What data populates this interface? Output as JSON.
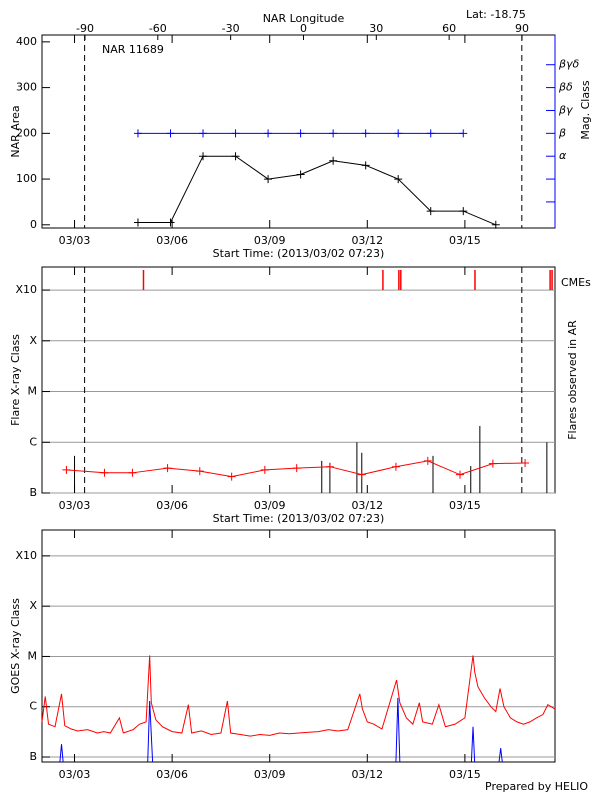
{
  "chart_data": [
    {
      "type": "line",
      "title": "NAR 11689",
      "annotation": "Lat: -18.75",
      "x_label": "Start Time: (2013/03/02 07:23)",
      "y_label": "NAR Area",
      "y2_label": "Mag. Class",
      "x2_label": "NAR Longitude",
      "xlim": [
        2,
        17.77
      ],
      "xticks": [
        {
          "value": 3,
          "label": "03/03"
        },
        {
          "value": 6,
          "label": "03/06"
        },
        {
          "value": 9,
          "label": "03/09"
        },
        {
          "value": 12,
          "label": "03/12"
        },
        {
          "value": 15,
          "label": "03/15"
        }
      ],
      "ylim": [
        -7,
        415
      ],
      "yticks": [
        0,
        100,
        200,
        300,
        400
      ],
      "x2lim": [
        -107.7,
        103.6
      ],
      "x2ticks": [
        -90,
        -60,
        -30,
        0,
        30,
        60,
        90
      ],
      "y2lim": [
        -7,
        415
      ],
      "y2ticks": [
        {
          "value": 150,
          "label": "α"
        },
        {
          "value": 200,
          "label": "β"
        },
        {
          "value": 250,
          "label": "βγ"
        },
        {
          "value": 300,
          "label": "βδ"
        },
        {
          "value": 350,
          "label": "βγδ"
        }
      ],
      "y2minorticks": [
        50,
        100
      ],
      "y2color": "#0000ff",
      "limb_lines": [
        3.31,
        16.75
      ],
      "grid": false,
      "log": false,
      "series": [
        {
          "color": "#000000",
          "marker": "+",
          "x": [
            4.95,
            5.95,
            6.95,
            7.95,
            8.95,
            9.95,
            10.95,
            11.95,
            12.95,
            13.95,
            14.95,
            15.95
          ],
          "values": [
            5,
            5,
            150,
            150,
            100,
            110,
            140,
            130,
            100,
            30,
            30,
            0
          ]
        },
        {
          "color": "#0000ff",
          "marker": "+",
          "axis": "y2",
          "x": [
            4.95,
            5.95,
            6.95,
            7.95,
            8.95,
            9.95,
            10.95,
            11.95,
            12.95,
            13.95,
            14.95
          ],
          "values": [
            200,
            200,
            200,
            200,
            200,
            200,
            200,
            200,
            200,
            200,
            200
          ]
        }
      ]
    },
    {
      "type": "line",
      "x_label": "Start Time: (2013/03/02 07:23)",
      "y_label": "Flare X-ray Class",
      "y2_label": "Flares observed in AR",
      "xlim": [
        2,
        17.77
      ],
      "xticks": [
        {
          "value": 3,
          "label": "03/03"
        },
        {
          "value": 6,
          "label": "03/06"
        },
        {
          "value": 9,
          "label": "03/09"
        },
        {
          "value": 12,
          "label": "03/12"
        },
        {
          "value": 15,
          "label": "03/15"
        }
      ],
      "ylim": [
        1e-07,
        0.00285
      ],
      "log": true,
      "grid": true,
      "yticks": [
        {
          "value": 1e-07,
          "label": "B"
        },
        {
          "value": 1e-06,
          "label": "C"
        },
        {
          "value": 1e-05,
          "label": "M"
        },
        {
          "value": 0.0001,
          "label": "X"
        },
        {
          "value": 0.001,
          "label": "X10"
        }
      ],
      "limb_lines": [
        3.31,
        16.75
      ],
      "series": [
        {
          "color": "#ff0000",
          "marker": "+",
          "x": [
            2.75,
            3.92,
            4.78,
            5.86,
            6.85,
            7.83,
            8.85,
            9.83,
            10.85,
            11.83,
            12.88,
            13.86,
            14.85,
            15.86,
            16.85
          ],
          "values": [
            2.85e-07,
            2.5e-07,
            2.5e-07,
            3.1e-07,
            2.7e-07,
            2.1e-07,
            2.85e-07,
            3.1e-07,
            3.3e-07,
            2.3e-07,
            3.3e-07,
            4.3e-07,
            2.3e-07,
            3.8e-07,
            3.9e-07
          ]
        }
      ],
      "flares": {
        "color": "#000000",
        "x": [
          3.0,
          10.6,
          10.85,
          11.68,
          11.83,
          14.02,
          15.18,
          15.46,
          17.52
        ],
        "values": [
          5.4e-07,
          4.3e-07,
          3.9e-07,
          1e-06,
          6.2e-07,
          5.4e-07,
          3.4e-07,
          2.1e-06,
          1e-06
        ]
      },
      "cmes": {
        "label": "CMEs",
        "color": "#ff0000",
        "x": [
          5.12,
          12.48,
          12.97,
          13.03,
          15.31,
          17.62,
          17.68
        ]
      }
    },
    {
      "type": "line",
      "y_label": "GOES X-ray Class",
      "footer": "Prepared by HELIO",
      "xlim": [
        2,
        17.77
      ],
      "xticks": [
        {
          "value": 3,
          "label": "03/03"
        },
        {
          "value": 6,
          "label": "03/06"
        },
        {
          "value": 9,
          "label": "03/09"
        },
        {
          "value": 12,
          "label": "03/12"
        },
        {
          "value": 15,
          "label": "03/15"
        }
      ],
      "ylim": [
        7.96e-08,
        0.00327
      ],
      "log": true,
      "grid": true,
      "yticks": [
        {
          "value": 1e-07,
          "label": "B"
        },
        {
          "value": 1e-06,
          "label": "C"
        },
        {
          "value": 1e-05,
          "label": "M"
        },
        {
          "value": 0.0001,
          "label": "X"
        },
        {
          "value": 0.001,
          "label": "X10"
        }
      ],
      "series": [
        {
          "color": "#ff0000",
          "x": [
            2.0,
            2.1,
            2.2,
            2.4,
            2.6,
            2.7,
            2.9,
            3.1,
            3.4,
            3.7,
            3.9,
            4.1,
            4.38,
            4.5,
            4.8,
            5.0,
            5.2,
            5.31,
            5.36,
            5.5,
            5.7,
            6.0,
            6.3,
            6.5,
            6.6,
            6.9,
            7.2,
            7.5,
            7.7,
            7.8,
            8.1,
            8.4,
            8.7,
            9.0,
            9.3,
            9.6,
            9.9,
            10.2,
            10.5,
            10.8,
            11.1,
            11.4,
            11.77,
            11.85,
            12.0,
            12.2,
            12.45,
            12.9,
            13.0,
            13.2,
            13.4,
            13.6,
            13.7,
            14.0,
            14.2,
            14.4,
            14.7,
            15.0,
            15.25,
            15.3,
            15.4,
            15.6,
            15.8,
            15.95,
            16.08,
            16.2,
            16.4,
            16.6,
            16.8,
            17.0,
            17.2,
            17.4,
            17.55,
            17.77
          ],
          "values": [
            5e-07,
            1.6e-06,
            4.5e-07,
            4e-07,
            1.8e-06,
            4.2e-07,
            3.6e-07,
            3.3e-07,
            3.5e-07,
            3e-07,
            3.2e-07,
            3e-07,
            6e-07,
            3e-07,
            3.5e-07,
            4.5e-07,
            5e-07,
            1.05e-05,
            1.2e-06,
            5.5e-07,
            4e-07,
            3.2e-07,
            3e-07,
            1.1e-06,
            3e-07,
            3.3e-07,
            2.8e-07,
            3e-07,
            1.3e-06,
            3e-07,
            2.8e-07,
            2.6e-07,
            2.8e-07,
            2.7e-07,
            3e-07,
            2.9e-07,
            3e-07,
            3.1e-07,
            3.2e-07,
            3.5e-07,
            3.3e-07,
            3.5e-07,
            1.8e-06,
            9e-07,
            5e-07,
            4.5e-07,
            3.6e-07,
            3.4e-06,
            1.2e-06,
            6e-07,
            4.5e-07,
            1.2e-06,
            5e-07,
            4.5e-07,
            1.1e-06,
            4e-07,
            4.5e-07,
            6e-07,
            1.05e-05,
            5e-06,
            2.5e-06,
            1.5e-06,
            1e-06,
            8e-07,
            2.3e-06,
            1e-06,
            6e-07,
            5e-07,
            4.5e-07,
            5e-07,
            6e-07,
            7e-07,
            1.1e-06,
            9e-07
          ]
        },
        {
          "color": "#0000ff",
          "x": [
            2.55,
            2.6,
            2.65,
            2.7,
            5.25,
            5.31,
            5.4,
            5.5,
            12.88,
            12.94,
            13.0,
            13.1,
            15.2,
            15.25,
            15.3,
            15.4,
            16.05,
            16.1,
            16.15
          ],
          "values": [
            8e-08,
            1.8e-07,
            8e-08,
            null,
            8e-08,
            1.3e-06,
            8e-08,
            null,
            8e-08,
            1.5e-06,
            8e-08,
            null,
            8e-08,
            4e-07,
            8e-08,
            null,
            8e-08,
            1.5e-07,
            8e-08
          ]
        }
      ]
    }
  ]
}
